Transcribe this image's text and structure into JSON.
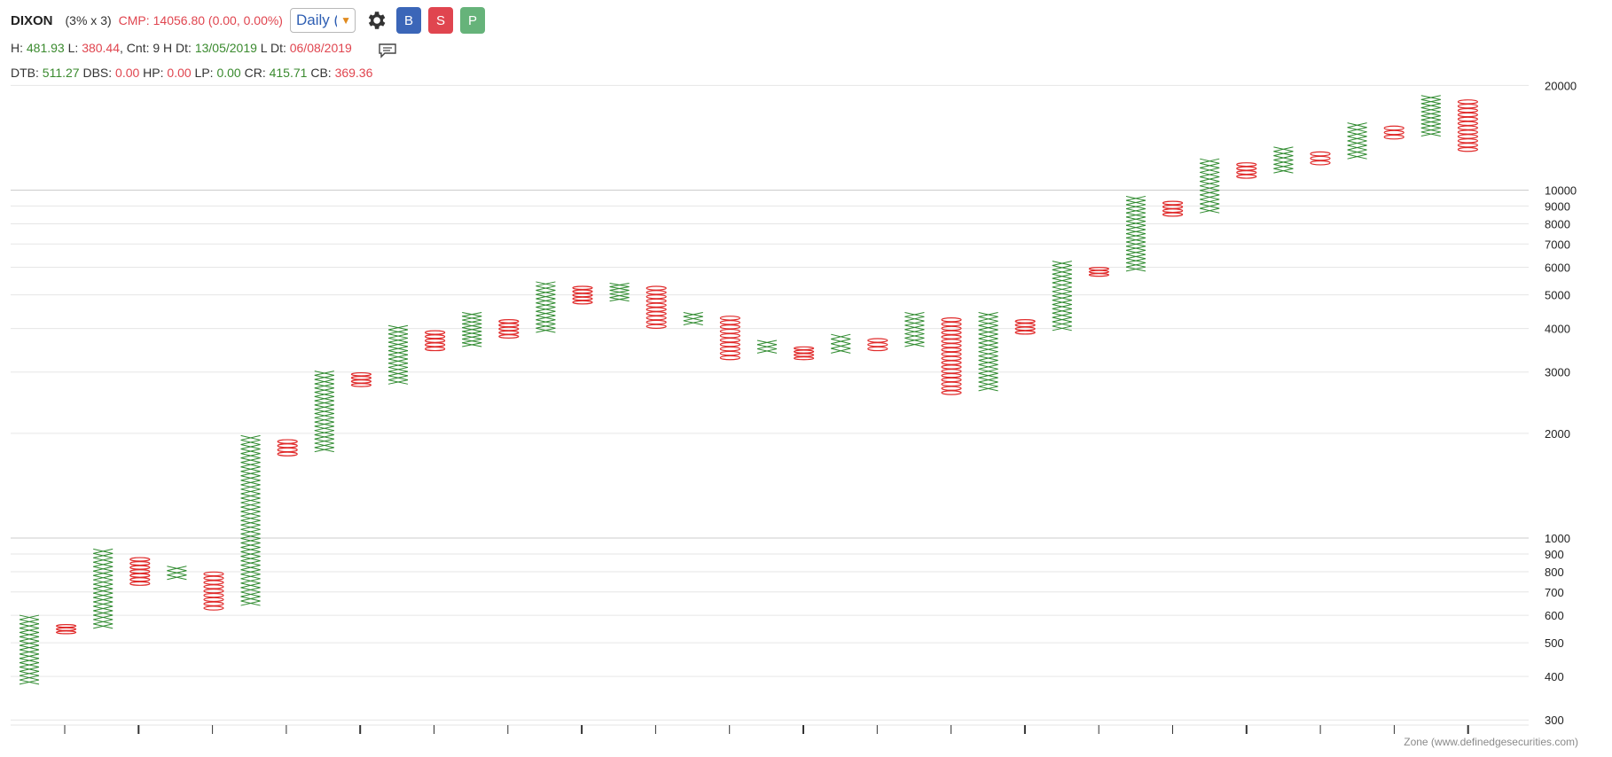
{
  "header": {
    "symbol": "DIXON",
    "box_setting": "(3% x 3)",
    "cmp_label": "CMP:",
    "cmp_value": "14056.80 (0.00, 0.00%)",
    "timeframe": "Daily (",
    "buttons": {
      "b": "B",
      "s": "S",
      "p": "P"
    },
    "colors": {
      "buy": "#3b66b8",
      "sell": "#e0454f",
      "portfolio": "#66b37a"
    }
  },
  "stats1": {
    "h_label": "H:",
    "h": "481.93",
    "l_label": "L:",
    "l": "380.44",
    "cnt_label": ", Cnt: 9 H Dt:",
    "h_dt": "13/05/2019",
    "l_dt_label": "L Dt:",
    "l_dt": "06/08/2019"
  },
  "stats2": {
    "dtb_label": "DTB:",
    "dtb": "511.27",
    "dbs_label": "DBS:",
    "dbs": "0.00",
    "hp_label": "HP:",
    "hp": "0.00",
    "lp_label": "LP:",
    "lp": "0.00",
    "cr_label": "CR:",
    "cr": "415.71",
    "cb_label": "CB:",
    "cb": "369.36"
  },
  "footer": "Zone (www.definedgesecurities.com)",
  "chart_data": {
    "type": "point-and-figure",
    "y_scale": "log",
    "ylim": [
      290,
      21000
    ],
    "y_ticks": [
      300,
      400,
      500,
      600,
      700,
      800,
      900,
      1000,
      2000,
      3000,
      4000,
      5000,
      6000,
      7000,
      8000,
      9000,
      10000,
      20000
    ],
    "y_tick_labels": [
      "300",
      "400",
      "500",
      "600",
      "700",
      "800",
      "900",
      "1000",
      "2000",
      "3000",
      "4000",
      "5000",
      "6000",
      "7000",
      "8000",
      "9000",
      "10000",
      "20000"
    ],
    "colors": {
      "x": "#2e8a2e",
      "o": "#e02b2b",
      "grid": "#e6e6e6",
      "grid_major": "#cccccc"
    },
    "columns": [
      {
        "type": "X",
        "low": 380,
        "high": 600,
        "boxes": 16
      },
      {
        "type": "O",
        "low": 530,
        "high": 565,
        "boxes": 3
      },
      {
        "type": "X",
        "low": 550,
        "high": 930,
        "boxes": 18
      },
      {
        "type": "O",
        "low": 730,
        "high": 880,
        "boxes": 7
      },
      {
        "type": "X",
        "low": 760,
        "high": 830,
        "boxes": 3
      },
      {
        "type": "O",
        "low": 620,
        "high": 800,
        "boxes": 9
      },
      {
        "type": "X",
        "low": 640,
        "high": 1970,
        "boxes": 38
      },
      {
        "type": "O",
        "low": 1720,
        "high": 1920,
        "boxes": 4
      },
      {
        "type": "X",
        "low": 1770,
        "high": 3020,
        "boxes": 19
      },
      {
        "type": "O",
        "low": 2720,
        "high": 2990,
        "boxes": 4
      },
      {
        "type": "X",
        "low": 2770,
        "high": 4080,
        "boxes": 14
      },
      {
        "type": "O",
        "low": 3450,
        "high": 3950,
        "boxes": 5
      },
      {
        "type": "X",
        "low": 3550,
        "high": 4450,
        "boxes": 9
      },
      {
        "type": "O",
        "low": 3750,
        "high": 4250,
        "boxes": 5
      },
      {
        "type": "X",
        "low": 3900,
        "high": 5450,
        "boxes": 12
      },
      {
        "type": "O",
        "low": 4700,
        "high": 5300,
        "boxes": 5
      },
      {
        "type": "X",
        "low": 4800,
        "high": 5400,
        "boxes": 5
      },
      {
        "type": "O",
        "low": 4000,
        "high": 5300,
        "boxes": 10
      },
      {
        "type": "X",
        "low": 4100,
        "high": 4450,
        "boxes": 3
      },
      {
        "type": "O",
        "low": 3250,
        "high": 4350,
        "boxes": 10
      },
      {
        "type": "X",
        "low": 3400,
        "high": 3700,
        "boxes": 3
      },
      {
        "type": "O",
        "low": 3250,
        "high": 3550,
        "boxes": 4
      },
      {
        "type": "X",
        "low": 3400,
        "high": 3850,
        "boxes": 4
      },
      {
        "type": "O",
        "low": 3450,
        "high": 3750,
        "boxes": 3
      },
      {
        "type": "X",
        "low": 3550,
        "high": 4450,
        "boxes": 8
      },
      {
        "type": "O",
        "low": 2580,
        "high": 4300,
        "boxes": 18
      },
      {
        "type": "X",
        "low": 2650,
        "high": 4450,
        "boxes": 18
      },
      {
        "type": "O",
        "low": 3850,
        "high": 4250,
        "boxes": 4
      },
      {
        "type": "X",
        "low": 3950,
        "high": 6250,
        "boxes": 16
      },
      {
        "type": "O",
        "low": 5650,
        "high": 6000,
        "boxes": 3
      },
      {
        "type": "X",
        "low": 5850,
        "high": 9600,
        "boxes": 18
      },
      {
        "type": "O",
        "low": 8400,
        "high": 9300,
        "boxes": 4
      },
      {
        "type": "X",
        "low": 8600,
        "high": 12300,
        "boxes": 12
      },
      {
        "type": "O",
        "low": 10800,
        "high": 12000,
        "boxes": 4
      },
      {
        "type": "X",
        "low": 11200,
        "high": 13300,
        "boxes": 6
      },
      {
        "type": "O",
        "low": 11800,
        "high": 12900,
        "boxes": 3
      },
      {
        "type": "X",
        "low": 12300,
        "high": 15600,
        "boxes": 8
      },
      {
        "type": "O",
        "low": 14000,
        "high": 15300,
        "boxes": 3
      },
      {
        "type": "X",
        "low": 14300,
        "high": 18700,
        "boxes": 10
      },
      {
        "type": "O",
        "low": 12900,
        "high": 18200,
        "boxes": 12
      }
    ]
  }
}
